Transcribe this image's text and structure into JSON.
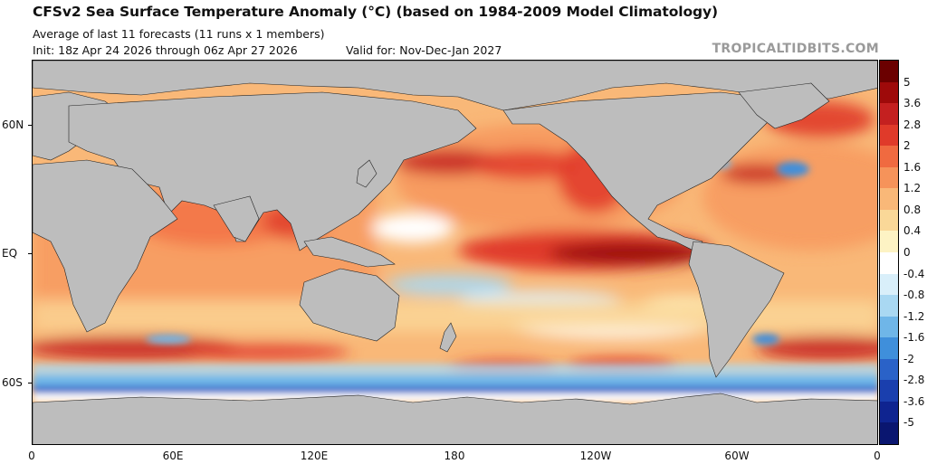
{
  "header": {
    "title": "CFSv2 Sea Surface Temperature Anomaly (°C) (based on 1984-2009 Model Climatology)",
    "subtitle": "Average of last 11 forecasts (11 runs x 1 members)",
    "init": "Init: 18z Apr 24 2026 through 06z Apr 27 2026",
    "valid": "Valid for: Nov-Dec-Jan 2027",
    "credit": "TROPICALTIDBITS.COM"
  },
  "axes": {
    "y_labels": [
      "60N",
      "EQ",
      "60S"
    ],
    "x_labels": [
      "0",
      "60E",
      "120E",
      "180",
      "120W",
      "60W",
      "0"
    ]
  },
  "colorbar": {
    "labels": [
      "5",
      "3.6",
      "2.8",
      "2",
      "1.6",
      "1.2",
      "0.8",
      "0.4",
      "0",
      "-0.4",
      "-0.8",
      "-1.2",
      "-1.6",
      "-2",
      "-2.8",
      "-3.6",
      "-5"
    ],
    "colors": [
      "#6b0000",
      "#9e0a0a",
      "#c42020",
      "#e03a2a",
      "#f06a40",
      "#f6935a",
      "#f9b878",
      "#fad898",
      "#fdf3c4",
      "#ffffff",
      "#d9effa",
      "#a9d8f2",
      "#6fb6e8",
      "#3f8fdb",
      "#2a62c8",
      "#1a3fae",
      "#0f2490",
      "#0a1670"
    ],
    "unit": "°C"
  },
  "map": {
    "projection": "equirectangular",
    "lon_range": [
      0,
      360
    ],
    "lat_range": [
      -80,
      80
    ],
    "land_color": "#bdbdbd",
    "field": "SST anomaly"
  }
}
